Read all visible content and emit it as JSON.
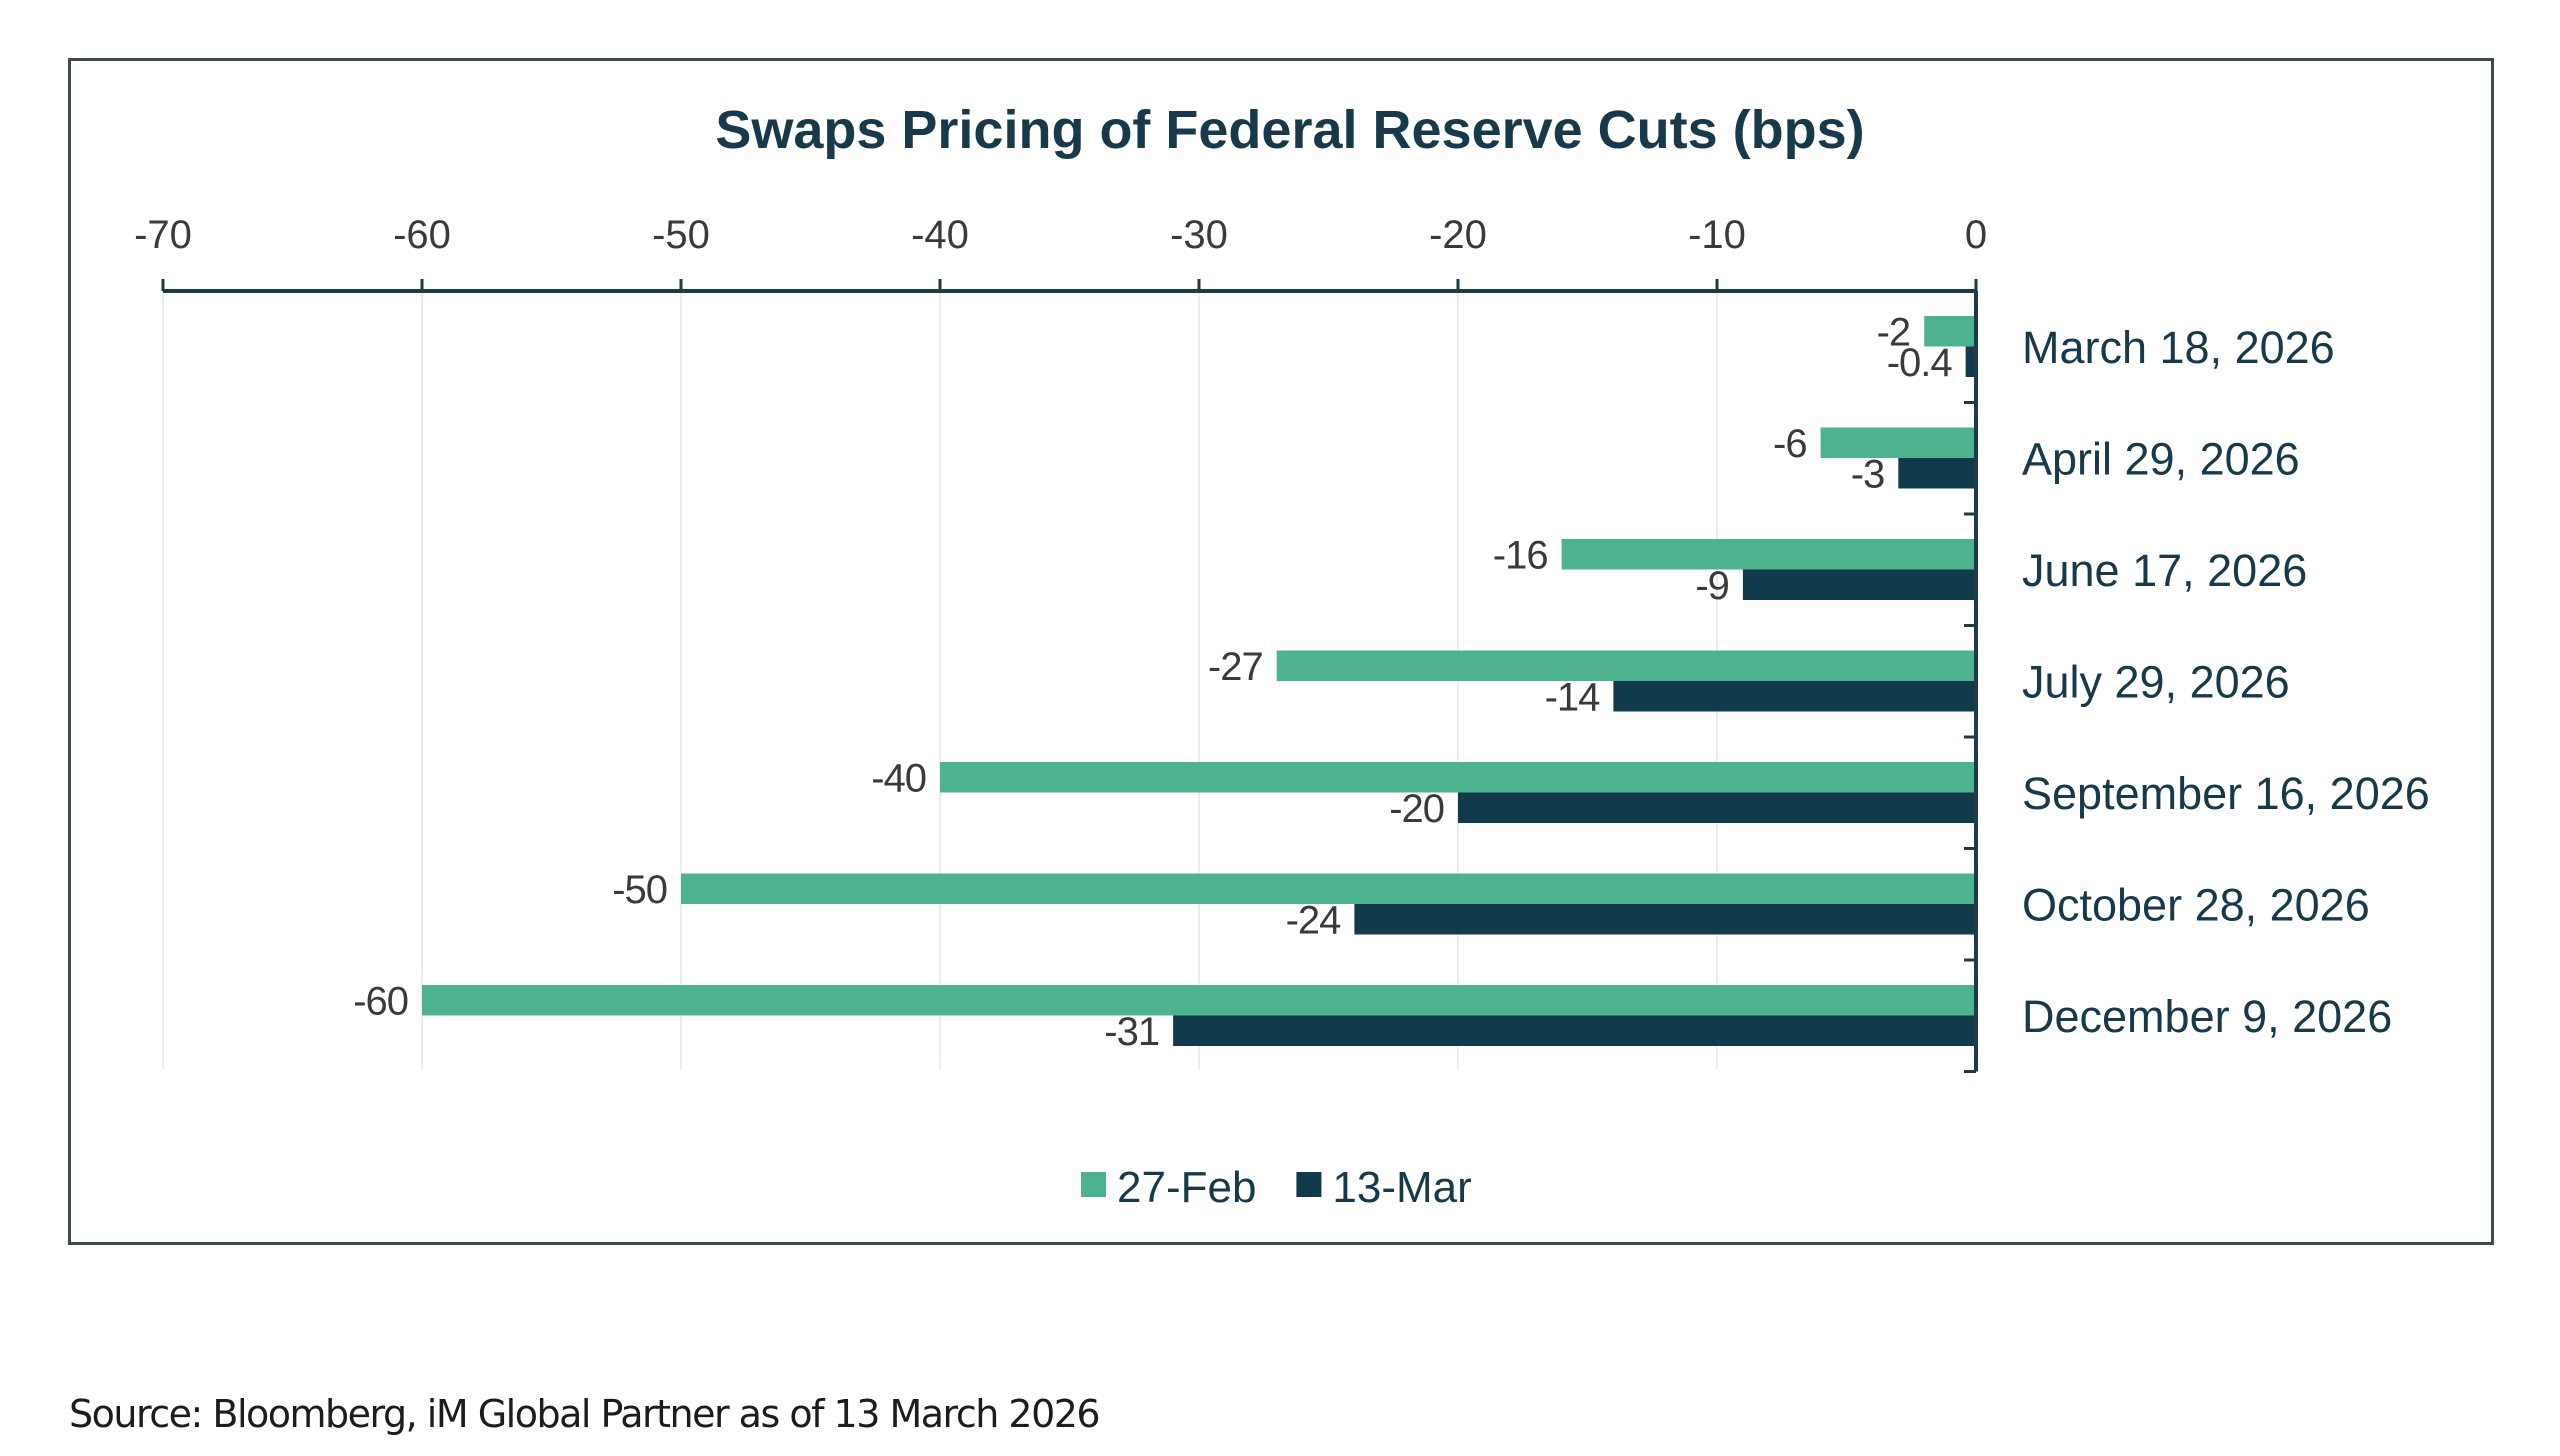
{
  "chart_data": {
    "type": "bar",
    "orientation": "horizontal",
    "title": "Swaps Pricing of Federal Reserve Cuts (bps)",
    "xlabel": "",
    "ylabel": "",
    "xlim": [
      -70,
      0
    ],
    "x_ticks": [
      -70,
      -60,
      -50,
      -40,
      -30,
      -20,
      -10,
      0
    ],
    "x_tick_labels": [
      "-70",
      "-60",
      "-50",
      "-40",
      "-30",
      "-20",
      "-10",
      "0"
    ],
    "x_axis_position": "top",
    "category_axis_position": "right",
    "grid": true,
    "legend_position": "bottom",
    "categories": [
      "March 18, 2026",
      "April 29, 2026",
      "June 17, 2026",
      "July 29, 2026",
      "September 16, 2026",
      "October 28, 2026",
      "December 9, 2026"
    ],
    "series": [
      {
        "name": "27-Feb",
        "color": "#4db38e",
        "values": [
          -2,
          -6,
          -16,
          -27,
          -40,
          -50,
          -60
        ],
        "labels": [
          "-2",
          "-6",
          "-16",
          "-27",
          "-40",
          "-50",
          "-60"
        ]
      },
      {
        "name": "13-Mar",
        "color": "#113a4b",
        "values": [
          -0.4,
          -3,
          -9,
          -14,
          -20,
          -24,
          -31
        ],
        "labels": [
          "-0.4",
          "-3",
          "-9",
          "-14",
          "-20",
          "-24",
          "-31"
        ]
      }
    ]
  },
  "colors": {
    "title": "#17394a",
    "axis": "#1f3a48",
    "grid": "#e9eef0",
    "text": "#3a3a3a",
    "frame": "#3f4a4f"
  },
  "footer": {
    "source": "Source: Bloomberg, iM Global Partner as of 13 March 2026"
  }
}
